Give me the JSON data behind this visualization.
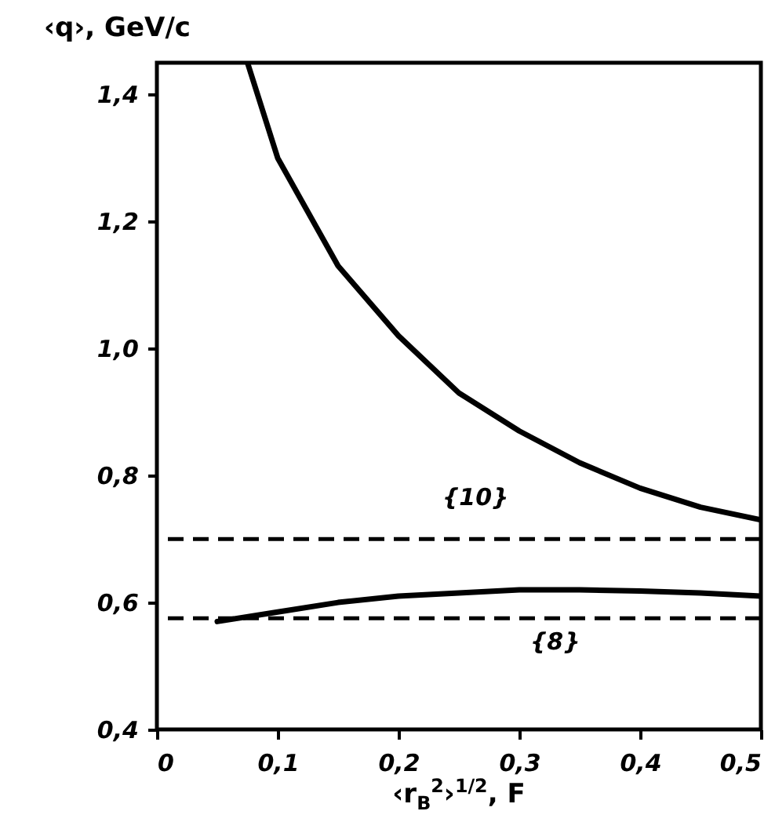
{
  "chart_data": {
    "type": "line",
    "xlabel": "‹r$_{B}$$^{2}$›$^{1/2}$, F",
    "ylabel": "‹q›, GeV/c",
    "xlim": [
      0,
      0.5
    ],
    "ylim": [
      0.4,
      1.45
    ],
    "xticks": [
      0,
      {
        "value": 0.1,
        "label": "0,1"
      },
      {
        "value": 0.2,
        "label": "0,2"
      },
      {
        "value": 0.3,
        "label": "0,3"
      },
      {
        "value": 0.4,
        "label": "0,4"
      },
      {
        "value": 0.5,
        "label": "0,5"
      }
    ],
    "yticks": [
      {
        "value": 0.4,
        "label": "0,4"
      },
      {
        "value": 0.6,
        "label": "0,6"
      },
      {
        "value": 0.8,
        "label": "0,8"
      },
      {
        "value": 1.0,
        "label": "1,0"
      },
      {
        "value": 1.2,
        "label": "1,2"
      },
      {
        "value": 1.4,
        "label": "1,4"
      }
    ],
    "series": [
      {
        "color": "#000000",
        "x": [
          0.075,
          0.1,
          0.15,
          0.2,
          0.25,
          0.3,
          0.35,
          0.4,
          0.45,
          0.5
        ],
        "values": [
          1.45,
          1.3,
          1.13,
          1.02,
          0.93,
          0.87,
          0.82,
          0.78,
          0.75,
          0.73
        ]
      },
      {
        "color": "#000000",
        "x": [
          0.05,
          0.1,
          0.15,
          0.2,
          0.25,
          0.3,
          0.35,
          0.4,
          0.45,
          0.5
        ],
        "values": [
          0.57,
          0.585,
          0.6,
          0.61,
          0.615,
          0.62,
          0.62,
          0.618,
          0.615,
          0.61
        ]
      }
    ],
    "ref_lines": [
      {
        "axis": "y",
        "value": 0.7,
        "line_style": "dashed",
        "color": "#000000"
      },
      {
        "axis": "y",
        "value": 0.575,
        "line_style": "dashed",
        "color": "#000000"
      }
    ],
    "annotations": [
      "{10}",
      "{8}"
    ],
    "grid": false,
    "marker": "none",
    "line_style": "solid"
  }
}
